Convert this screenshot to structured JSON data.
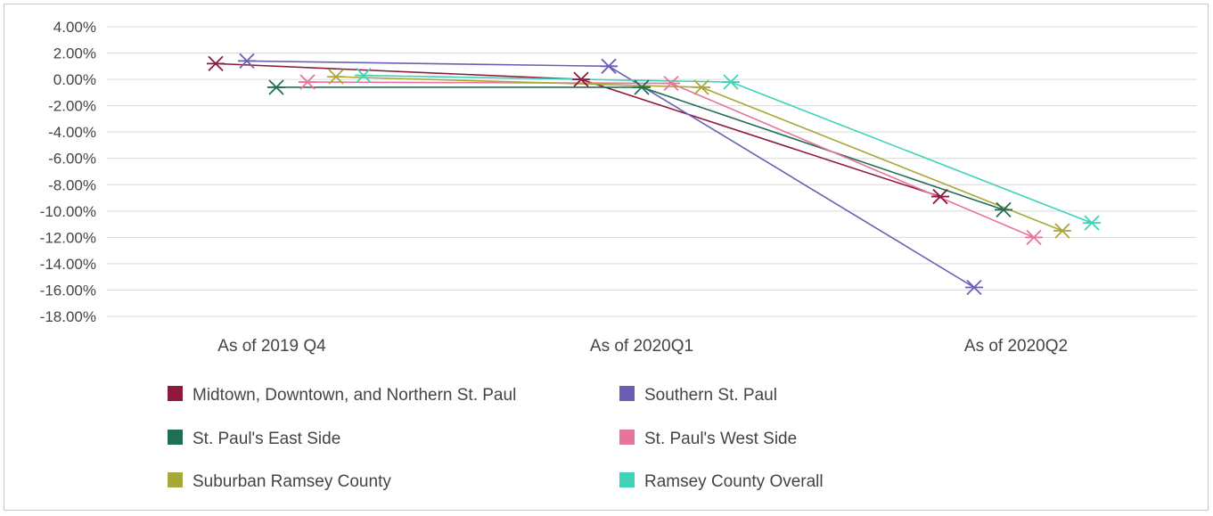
{
  "chart_data": {
    "type": "line",
    "title": "",
    "xlabel": "",
    "ylabel": "",
    "categories": [
      "As of 2019 Q4",
      "As of 2020Q1",
      "As of 2020Q2"
    ],
    "ylim": [
      -18,
      4
    ],
    "yticks": [
      4,
      2,
      0,
      -2,
      -4,
      -6,
      -8,
      -10,
      -12,
      -14,
      -16,
      -18
    ],
    "ytick_labels": [
      "4.00%",
      "2.00%",
      "0.00%",
      "-2.00%",
      "-4.00%",
      "-6.00%",
      "-8.00%",
      "-10.00%",
      "-12.00%",
      "-14.00%",
      "-16.00%",
      "-18.00%"
    ],
    "grid": true,
    "legend_position": "bottom",
    "marker": "asterisk",
    "series": [
      {
        "name": "Midtown, Downtown, and Northern St. Paul",
        "color": "#8b1a3c",
        "values": [
          1.2,
          0.0,
          -8.9
        ]
      },
      {
        "name": "Southern St. Paul",
        "color": "#6b5fb5",
        "values": [
          1.4,
          1.0,
          -15.8
        ]
      },
      {
        "name": "St. Paul's East Side",
        "color": "#1f6e55",
        "values": [
          -0.6,
          -0.6,
          -9.9
        ]
      },
      {
        "name": "St. Paul's West Side",
        "color": "#e8749a",
        "values": [
          -0.2,
          -0.3,
          -12.0
        ]
      },
      {
        "name": "Suburban Ramsey County",
        "color": "#a8a838",
        "values": [
          0.2,
          -0.6,
          -11.5
        ]
      },
      {
        "name": "Ramsey County Overall",
        "color": "#3ed3b8",
        "values": [
          0.3,
          -0.2,
          -10.9
        ]
      }
    ]
  }
}
